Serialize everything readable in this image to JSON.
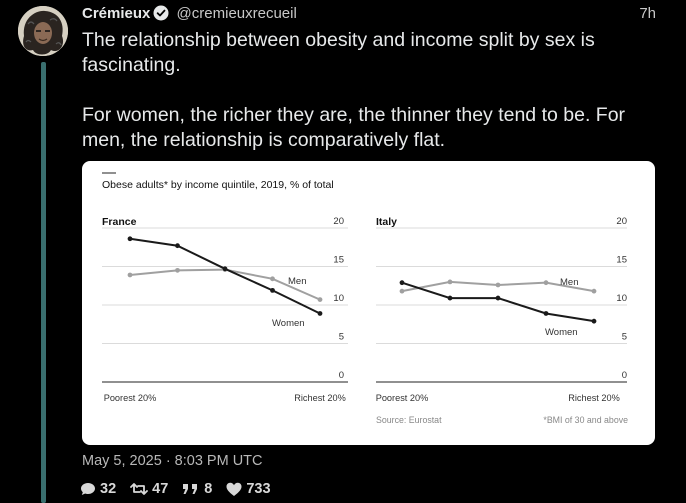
{
  "tweet": {
    "author_name": "Crémieux",
    "author_handle": "@cremieuxrecueil",
    "relative_time": "7h",
    "paragraph_1": "The relationship between obesity and income split by sex is fascinating.",
    "paragraph_2": "For women, the richer they are, the thinner they tend to be. For men, the relationship is comparatively flat.",
    "timestamp": "May 5, 2025 · 8:03 PM UTC",
    "stats": {
      "replies": "32",
      "retweets": "47",
      "quotes": "8",
      "likes": "733"
    }
  },
  "icons": {
    "verified": "verified-badge-icon",
    "reply": "comment-icon",
    "retweet": "retweet-icon",
    "quote": "quote-icon",
    "like": "heart-icon"
  },
  "colors": {
    "women_line": "#1a1a1a",
    "men_line": "#a0a0a0"
  },
  "chart_data": [
    {
      "type": "line",
      "title": "Obese adults* by income quintile, 2019, % of total",
      "panel": "France",
      "x": [
        "Poorest 20%",
        "",
        "",
        "",
        "Richest 20%"
      ],
      "ylim": [
        0,
        20
      ],
      "yticks": [
        0,
        5,
        10,
        15,
        20
      ],
      "series": [
        {
          "name": "Men",
          "values": [
            13.9,
            14.5,
            14.6,
            13.4,
            10.7
          ]
        },
        {
          "name": "Women",
          "values": [
            18.6,
            17.7,
            14.7,
            11.9,
            8.9
          ]
        }
      ],
      "grid": true
    },
    {
      "type": "line",
      "panel": "Italy",
      "x": [
        "Poorest 20%",
        "",
        "",
        "",
        "Richest 20%"
      ],
      "ylim": [
        0,
        20
      ],
      "yticks": [
        0,
        5,
        10,
        15,
        20
      ],
      "series": [
        {
          "name": "Men",
          "values": [
            11.8,
            13.0,
            12.6,
            12.9,
            11.8
          ]
        },
        {
          "name": "Women",
          "values": [
            12.9,
            10.9,
            10.9,
            8.9,
            7.9
          ]
        }
      ],
      "grid": true
    }
  ],
  "chart_notes": {
    "source": "Source: Eurostat",
    "footnote": "*BMI of 30 and above"
  }
}
